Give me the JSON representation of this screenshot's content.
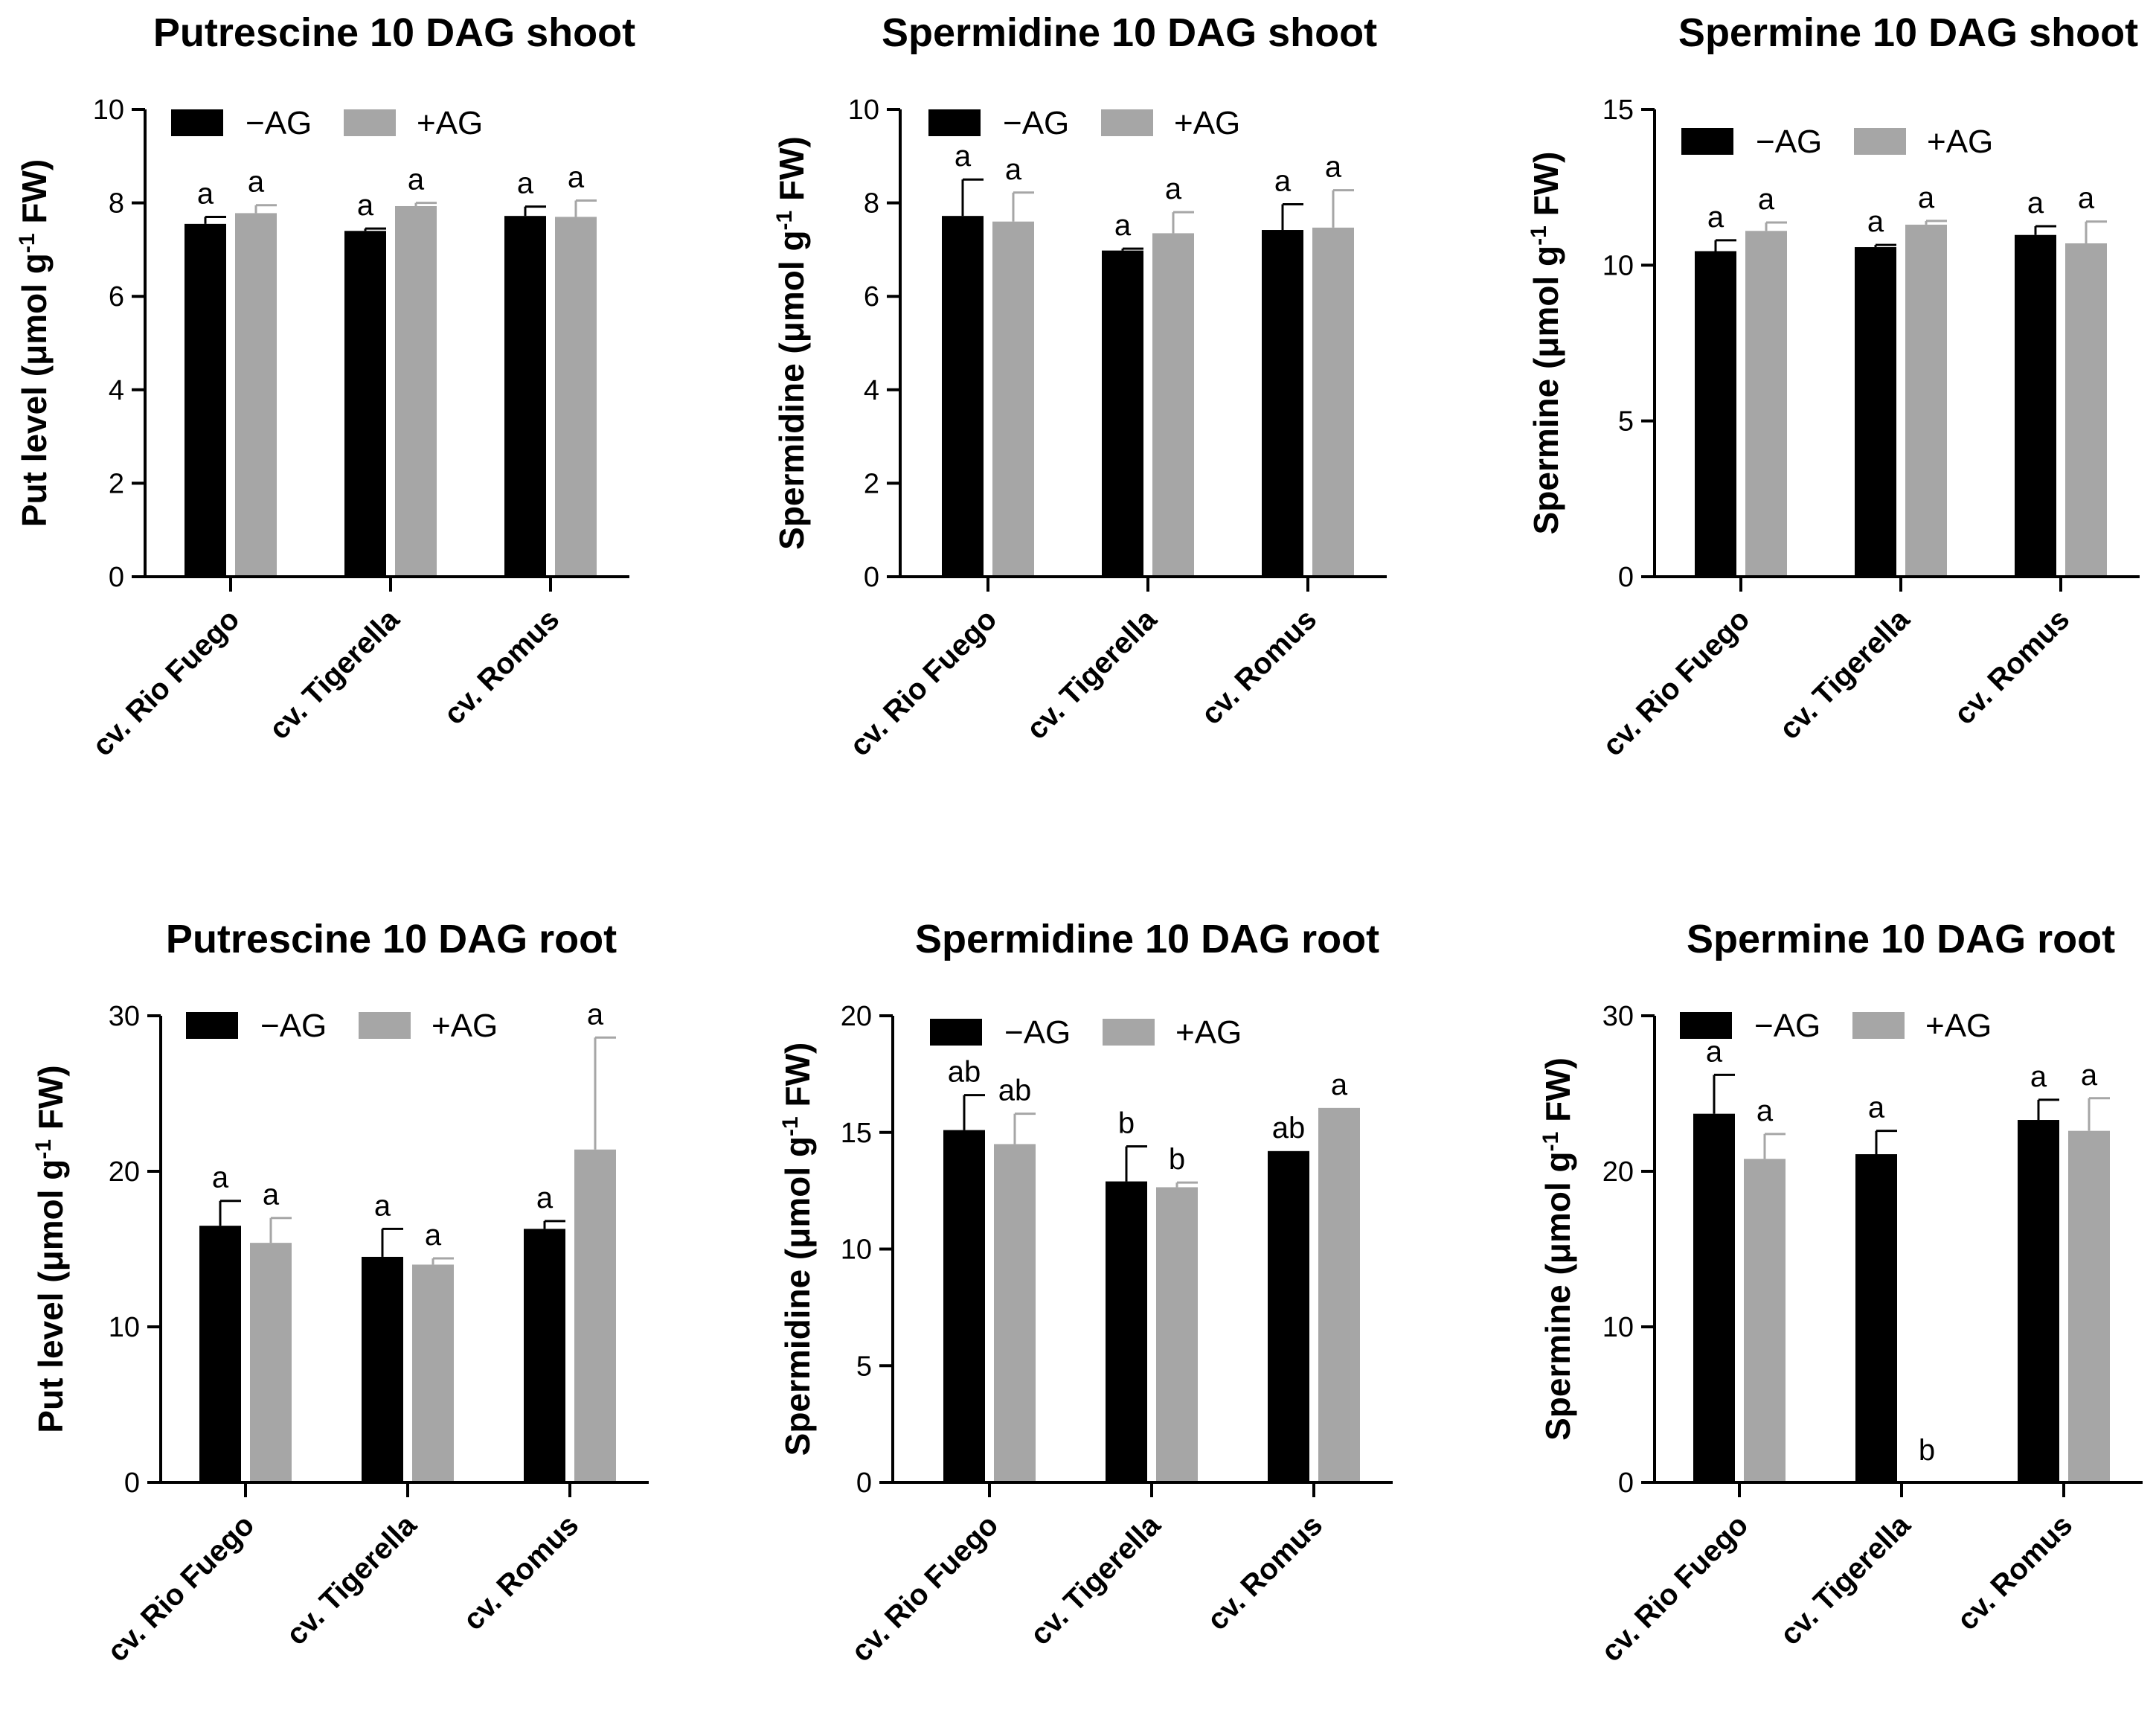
{
  "figure": {
    "legend": {
      "minus_label": "−AG",
      "plus_label": "+AG"
    },
    "colors": {
      "minus": "#000000",
      "plus": "#a6a6a6",
      "axis": "#000000"
    }
  },
  "chart_data": [
    {
      "type": "bar",
      "title": "Putrescine 10 DAG shoot",
      "ylabel_main": "Put level (μmol g",
      "ylabel_sup": "-1",
      "ylabel_end": " FW)",
      "categories": [
        "cv. Rio Fuego",
        "cv. Tigerella",
        "cv. Romus"
      ],
      "ylim": [
        0,
        10
      ],
      "yticks": [
        0,
        2,
        4,
        6,
        8,
        10
      ],
      "series": [
        {
          "name": "−AG",
          "values": [
            7.55,
            7.4,
            7.72
          ],
          "errors": [
            0.15,
            0.05,
            0.2
          ],
          "letters": [
            "a",
            "a",
            "a"
          ]
        },
        {
          "name": "+AG",
          "values": [
            7.78,
            7.93,
            7.7
          ],
          "errors": [
            0.17,
            0.07,
            0.35
          ],
          "letters": [
            "a",
            "a",
            "a"
          ]
        }
      ]
    },
    {
      "type": "bar",
      "title": "Spermidine 10 DAG shoot",
      "ylabel_main": "Spermidine (μmol g",
      "ylabel_sup": "-1",
      "ylabel_end": " FW)",
      "categories": [
        "cv. Rio Fuego",
        "cv. Tigerella",
        "cv. Romus"
      ],
      "ylim": [
        0,
        10
      ],
      "yticks": [
        0,
        2,
        4,
        6,
        8,
        10
      ],
      "series": [
        {
          "name": "−AG",
          "values": [
            7.72,
            6.98,
            7.42
          ],
          "errors": [
            0.78,
            0.04,
            0.55
          ],
          "letters": [
            "a",
            "a",
            "a"
          ]
        },
        {
          "name": "+AG",
          "values": [
            7.6,
            7.35,
            7.47
          ],
          "errors": [
            0.62,
            0.45,
            0.8
          ],
          "letters": [
            "a",
            "a",
            "a"
          ]
        }
      ]
    },
    {
      "type": "bar",
      "title": "Spermine 10 DAG shoot",
      "ylabel_main": "Spermine (μmol g",
      "ylabel_sup": "-1",
      "ylabel_end": " FW)",
      "categories": [
        "cv. Rio Fuego",
        "cv. Tigerella",
        "cv. Romus"
      ],
      "ylim": [
        0,
        15
      ],
      "yticks": [
        0,
        5,
        10,
        15
      ],
      "series": [
        {
          "name": "−AG",
          "values": [
            10.45,
            10.58,
            10.97
          ],
          "errors": [
            0.35,
            0.07,
            0.28
          ],
          "letters": [
            "a",
            "a",
            "a"
          ]
        },
        {
          "name": "+AG",
          "values": [
            11.1,
            11.3,
            10.7
          ],
          "errors": [
            0.27,
            0.12,
            0.7
          ],
          "letters": [
            "a",
            "a",
            "a"
          ]
        }
      ]
    },
    {
      "type": "bar",
      "title": "Putrescine 10 DAG root",
      "ylabel_main": "Put level (μmol g",
      "ylabel_sup": "-1",
      "ylabel_end": " FW)",
      "categories": [
        "cv. Rio Fuego",
        "cv. Tigerella",
        "cv. Romus"
      ],
      "ylim": [
        0,
        30
      ],
      "yticks": [
        0,
        10,
        20,
        30
      ],
      "series": [
        {
          "name": "−AG",
          "values": [
            16.5,
            14.5,
            16.3
          ],
          "errors": [
            1.6,
            1.8,
            0.5
          ],
          "letters": [
            "a",
            "a",
            "a"
          ]
        },
        {
          "name": "+AG",
          "values": [
            15.4,
            14.0,
            21.4
          ],
          "errors": [
            1.6,
            0.4,
            7.2
          ],
          "letters": [
            "a",
            "a",
            "a"
          ]
        }
      ]
    },
    {
      "type": "bar",
      "title": "Spermidine 10 DAG root",
      "ylabel_main": "Spermidine (μmol g",
      "ylabel_sup": "-1",
      "ylabel_end": " FW)",
      "categories": [
        "cv. Rio Fuego",
        "cv. Tigerella",
        "cv. Romus"
      ],
      "ylim": [
        0,
        20
      ],
      "yticks": [
        0,
        5,
        10,
        15,
        20
      ],
      "series": [
        {
          "name": "−AG",
          "values": [
            15.1,
            12.9,
            14.2
          ],
          "errors": [
            1.5,
            1.5,
            0.0
          ],
          "letters": [
            "ab",
            "b",
            "ab"
          ]
        },
        {
          "name": "+AG",
          "values": [
            14.5,
            12.65,
            16.05
          ],
          "errors": [
            1.3,
            0.2,
            0.0
          ],
          "letters": [
            "ab",
            "b",
            "a"
          ]
        }
      ]
    },
    {
      "type": "bar",
      "title": "Spermine 10 DAG root",
      "ylabel_main": "Spermine (μmol g",
      "ylabel_sup": "-1",
      "ylabel_end": " FW)",
      "categories": [
        "cv. Rio Fuego",
        "cv. Tigerella",
        "cv. Romus"
      ],
      "ylim": [
        0,
        30
      ],
      "yticks": [
        0,
        10,
        20,
        30
      ],
      "series": [
        {
          "name": "−AG",
          "values": [
            23.7,
            21.1,
            23.3
          ],
          "errors": [
            2.5,
            1.5,
            1.3
          ],
          "letters": [
            "a",
            "a",
            "a"
          ]
        },
        {
          "name": "+AG",
          "values": [
            20.8,
            0.0,
            22.6
          ],
          "errors": [
            1.6,
            0.0,
            2.1
          ],
          "letters": [
            "a",
            "b",
            "a"
          ]
        }
      ]
    }
  ]
}
